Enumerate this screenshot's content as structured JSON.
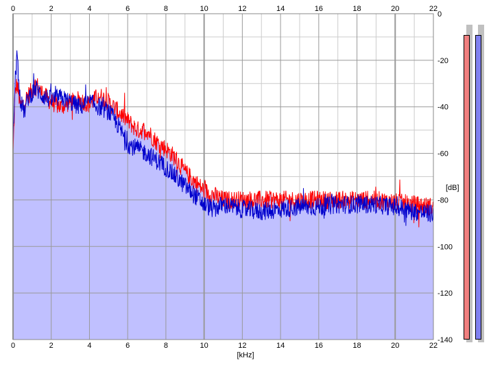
{
  "chart_data": {
    "type": "area",
    "title": "",
    "xlabel": "[kHz]",
    "ylabel": "[dB]",
    "xlim": [
      0,
      22
    ],
    "ylim": [
      -140,
      0
    ],
    "x_ticks": [
      "0",
      "2",
      "4",
      "6",
      "8",
      "10",
      "12",
      "14",
      "16",
      "18",
      "20",
      "22"
    ],
    "y_ticks": [
      "0",
      "-20",
      "-40",
      "-60",
      "-80",
      "-100",
      "-120",
      "-140"
    ],
    "grid": true,
    "legend": "none",
    "colors": {
      "fill": "#c0c0ff",
      "red": "#ff0000",
      "blue": "#0000cc",
      "grid_major": "#999999",
      "grid_minor": "#cccccc"
    },
    "series": [
      {
        "color": "red",
        "x": [
          0,
          0.1,
          0.2,
          0.4,
          0.6,
          0.8,
          1.0,
          1.2,
          1.5,
          2.0,
          2.5,
          3.0,
          3.5,
          4.0,
          4.5,
          5.0,
          5.5,
          6.0,
          6.5,
          7.0,
          7.5,
          8.0,
          8.5,
          9.0,
          9.5,
          10.0,
          10.5,
          11.0,
          12.0,
          13.0,
          14.0,
          15.0,
          16.0,
          17.0,
          18.0,
          19.0,
          20.0,
          21.0,
          22.0
        ],
        "values": [
          -60,
          -35,
          -30,
          -40,
          -38,
          -35,
          -33,
          -30,
          -34,
          -38,
          -40,
          -38,
          -37,
          -39,
          -35,
          -38,
          -42,
          -46,
          -50,
          -50,
          -55,
          -58,
          -62,
          -68,
          -72,
          -76,
          -78,
          -80,
          -80,
          -80,
          -80,
          -80,
          -80,
          -80,
          -80,
          -80,
          -81,
          -82,
          -83
        ]
      },
      {
        "color": "blue",
        "x": [
          0,
          0.1,
          0.2,
          0.4,
          0.6,
          0.8,
          1.0,
          1.2,
          1.5,
          2.0,
          2.5,
          3.0,
          3.5,
          4.0,
          4.5,
          5.0,
          5.5,
          6.0,
          6.5,
          7.0,
          7.5,
          8.0,
          8.5,
          9.0,
          9.5,
          10.0,
          10.5,
          11.0,
          12.0,
          13.0,
          14.0,
          15.0,
          16.0,
          17.0,
          18.0,
          19.0,
          20.0,
          21.0,
          22.0
        ],
        "values": [
          -55,
          -30,
          -18,
          -38,
          -42,
          -36,
          -34,
          -32,
          -35,
          -37,
          -36,
          -38,
          -40,
          -38,
          -40,
          -42,
          -48,
          -56,
          -58,
          -60,
          -63,
          -66,
          -70,
          -74,
          -78,
          -82,
          -84,
          -82,
          -84,
          -85,
          -84,
          -83,
          -83,
          -82,
          -82,
          -82,
          -83,
          -85,
          -86
        ]
      }
    ]
  },
  "meters": {
    "left_color": "#f08080",
    "right_color": "#8080f0",
    "left_level": 0.96,
    "right_level": 0.96
  }
}
